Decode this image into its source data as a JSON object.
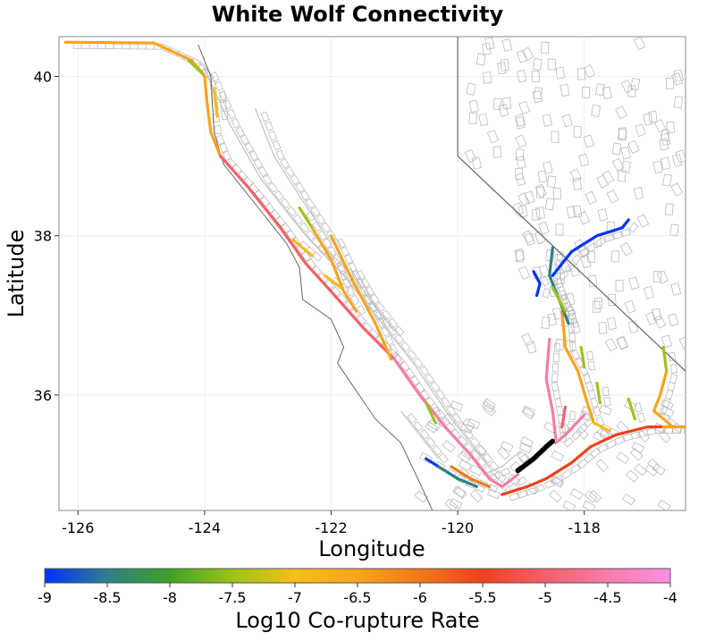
{
  "title": "White Wolf Connectivity",
  "x_axis": {
    "label": "Longitude",
    "ticks": [
      "-126",
      "-124",
      "-122",
      "-120",
      "-118"
    ]
  },
  "y_axis": {
    "label": "Latitude",
    "ticks": [
      "40",
      "38",
      "36"
    ]
  },
  "colorbar": {
    "label": "Log10 Co-rupture Rate",
    "ticks": [
      "-9",
      "-8.5",
      "-8",
      "-7.5",
      "-7",
      "-6.5",
      "-6",
      "-5.5",
      "-5",
      "-4.5",
      "-4"
    ],
    "colors": [
      "#0033ff",
      "#2d7f8a",
      "#3fa226",
      "#9dc21a",
      "#f5bd1a",
      "#f6a41d",
      "#f07a18",
      "#f0401e",
      "#f5606a",
      "#f77ca8",
      "#ff8ee8"
    ]
  },
  "map_data": {
    "lon_range": [
      -126.3,
      -116.4
    ],
    "lat_range": [
      34.55,
      40.5
    ],
    "state_border": [
      [
        -120.0,
        40.5
      ],
      [
        -120.0,
        39.0
      ],
      [
        -116.4,
        36.3
      ]
    ],
    "coastline": [
      [
        -124.1,
        40.4
      ],
      [
        -123.9,
        40.0
      ],
      [
        -123.85,
        39.3
      ],
      [
        -123.7,
        38.9
      ],
      [
        -123.1,
        38.3
      ],
      [
        -122.7,
        37.9
      ],
      [
        -122.5,
        37.6
      ],
      [
        -122.45,
        37.2
      ],
      [
        -122.0,
        36.95
      ],
      [
        -121.8,
        36.6
      ],
      [
        -121.9,
        36.4
      ],
      [
        -121.3,
        35.7
      ],
      [
        -120.9,
        35.4
      ],
      [
        -120.6,
        34.9
      ],
      [
        -120.4,
        34.55
      ]
    ],
    "selected_rupture": [
      [
        -119.05,
        35.05
      ],
      [
        -118.8,
        35.2
      ],
      [
        -118.6,
        35.35
      ],
      [
        -118.5,
        35.42
      ]
    ],
    "fault_traces": [
      {
        "log_rate": -6.3,
        "points": [
          [
            -126.2,
            40.43
          ],
          [
            -124.8,
            40.42
          ],
          [
            -124.2,
            40.2
          ],
          [
            -124.0,
            40.0
          ]
        ]
      },
      {
        "log_rate": -7.4,
        "points": [
          [
            -124.25,
            40.2
          ],
          [
            -124.05,
            40.05
          ]
        ]
      },
      {
        "log_rate": -6.5,
        "points": [
          [
            -124.0,
            40.0
          ],
          [
            -123.95,
            39.6
          ],
          [
            -123.9,
            39.3
          ],
          [
            -123.75,
            39.0
          ]
        ]
      },
      {
        "log_rate": -5.2,
        "points": [
          [
            -123.75,
            39.0
          ],
          [
            -123.3,
            38.6
          ],
          [
            -122.8,
            38.1
          ],
          [
            -122.4,
            37.65
          ],
          [
            -122.0,
            37.3
          ],
          [
            -121.5,
            36.85
          ],
          [
            -121.0,
            36.45
          ]
        ]
      },
      {
        "log_rate": -4.3,
        "points": [
          [
            -121.0,
            36.45
          ],
          [
            -120.6,
            36.0
          ],
          [
            -120.2,
            35.6
          ],
          [
            -119.8,
            35.25
          ],
          [
            -119.5,
            34.95
          ],
          [
            -119.3,
            34.85
          ],
          [
            -119.05,
            35.0
          ]
        ]
      },
      {
        "log_rate": -6.9,
        "points": [
          [
            -123.85,
            39.85
          ],
          [
            -123.8,
            39.5
          ]
        ]
      },
      {
        "log_rate": -7.3,
        "points": [
          [
            -122.5,
            38.35
          ],
          [
            -122.3,
            38.1
          ]
        ]
      },
      {
        "log_rate": -6.6,
        "points": [
          [
            -122.3,
            38.1
          ],
          [
            -122.0,
            37.7
          ],
          [
            -121.8,
            37.3
          ],
          [
            -121.6,
            37.05
          ]
        ]
      },
      {
        "log_rate": -7.0,
        "points": [
          [
            -122.6,
            37.95
          ],
          [
            -122.3,
            37.75
          ]
        ]
      },
      {
        "log_rate": -7.2,
        "points": [
          [
            -122.1,
            37.5
          ],
          [
            -121.85,
            37.35
          ]
        ]
      },
      {
        "log_rate": -6.3,
        "points": [
          [
            -122.0,
            38.0
          ],
          [
            -121.7,
            37.5
          ],
          [
            -121.3,
            36.9
          ],
          [
            -121.05,
            36.45
          ]
        ]
      },
      {
        "log_rate": -7.6,
        "points": [
          [
            -120.5,
            35.9
          ],
          [
            -120.35,
            35.65
          ]
        ]
      },
      {
        "log_rate": -8.9,
        "points": [
          [
            -120.5,
            35.2
          ],
          [
            -120.3,
            35.1
          ]
        ]
      },
      {
        "log_rate": -8.3,
        "points": [
          [
            -120.3,
            35.1
          ],
          [
            -120.0,
            34.95
          ],
          [
            -119.7,
            34.85
          ]
        ]
      },
      {
        "log_rate": -6.1,
        "points": [
          [
            -120.1,
            35.1
          ],
          [
            -119.8,
            34.95
          ],
          [
            -119.5,
            34.85
          ]
        ]
      },
      {
        "log_rate": -5.3,
        "points": [
          [
            -119.3,
            34.75
          ],
          [
            -118.9,
            34.85
          ],
          [
            -118.6,
            34.95
          ],
          [
            -118.2,
            35.15
          ],
          [
            -117.9,
            35.35
          ],
          [
            -117.5,
            35.5
          ],
          [
            -117.0,
            35.6
          ],
          [
            -116.6,
            35.6
          ]
        ]
      },
      {
        "log_rate": -6.6,
        "points": [
          [
            -116.6,
            35.6
          ],
          [
            -116.9,
            35.8
          ],
          [
            -116.8,
            36.0
          ],
          [
            -116.7,
            36.3
          ]
        ]
      },
      {
        "log_rate": -7.5,
        "points": [
          [
            -116.7,
            36.3
          ],
          [
            -116.75,
            36.6
          ]
        ]
      },
      {
        "log_rate": -6.7,
        "points": [
          [
            -116.4,
            35.6
          ],
          [
            -116.75,
            35.6
          ]
        ]
      },
      {
        "log_rate": -4.6,
        "points": [
          [
            -118.55,
            36.7
          ],
          [
            -118.6,
            36.2
          ],
          [
            -118.5,
            35.8
          ],
          [
            -118.45,
            35.45
          ]
        ]
      },
      {
        "log_rate": -4.8,
        "points": [
          [
            -118.3,
            35.85
          ],
          [
            -118.35,
            35.6
          ]
        ]
      },
      {
        "log_rate": -4.7,
        "points": [
          [
            -118.0,
            35.75
          ],
          [
            -118.3,
            35.5
          ],
          [
            -118.45,
            35.4
          ]
        ]
      },
      {
        "log_rate": -6.6,
        "points": [
          [
            -118.35,
            37.05
          ],
          [
            -118.3,
            36.6
          ],
          [
            -118.1,
            36.3
          ],
          [
            -117.95,
            35.9
          ],
          [
            -117.85,
            35.65
          ]
        ]
      },
      {
        "log_rate": -7.2,
        "points": [
          [
            -117.85,
            35.65
          ],
          [
            -117.6,
            35.55
          ]
        ]
      },
      {
        "log_rate": -7.3,
        "points": [
          [
            -117.8,
            36.15
          ],
          [
            -117.75,
            35.9
          ]
        ]
      },
      {
        "log_rate": -7.6,
        "points": [
          [
            -117.3,
            35.95
          ],
          [
            -117.2,
            35.7
          ]
        ]
      },
      {
        "log_rate": -7.6,
        "points": [
          [
            -118.05,
            36.6
          ],
          [
            -118.0,
            36.35
          ]
        ]
      },
      {
        "log_rate": -8.5,
        "points": [
          [
            -118.5,
            37.85
          ],
          [
            -118.55,
            37.5
          ],
          [
            -118.4,
            37.2
          ],
          [
            -118.25,
            36.9
          ]
        ]
      },
      {
        "log_rate": -7.5,
        "points": [
          [
            -118.5,
            37.35
          ],
          [
            -118.3,
            37.05
          ]
        ]
      },
      {
        "log_rate": -8.8,
        "points": [
          [
            -118.5,
            37.5
          ],
          [
            -118.2,
            37.8
          ],
          [
            -117.8,
            38.0
          ],
          [
            -117.4,
            38.1
          ],
          [
            -117.3,
            38.2
          ]
        ]
      },
      {
        "log_rate": -8.9,
        "points": [
          [
            -118.8,
            37.55
          ],
          [
            -118.7,
            37.4
          ],
          [
            -118.75,
            37.25
          ]
        ]
      }
    ],
    "grey_faults": [
      [
        [
          -124.0,
          40.1
        ],
        [
          -123.6,
          39.4
        ],
        [
          -123.1,
          38.7
        ],
        [
          -122.4,
          38.0
        ],
        [
          -121.8,
          37.5
        ],
        [
          -121.3,
          37.0
        ],
        [
          -120.7,
          36.4
        ],
        [
          -120.1,
          35.7
        ],
        [
          -119.5,
          35.1
        ]
      ],
      [
        [
          -123.2,
          39.6
        ],
        [
          -122.9,
          39.0
        ],
        [
          -122.5,
          38.5
        ],
        [
          -122.0,
          37.9
        ]
      ],
      [
        [
          -121.7,
          37.6
        ],
        [
          -121.4,
          37.2
        ],
        [
          -121.0,
          36.8
        ]
      ],
      [
        [
          -120.9,
          35.8
        ],
        [
          -120.6,
          35.5
        ],
        [
          -120.3,
          35.2
        ]
      ],
      [
        [
          -119.0,
          35.3
        ],
        [
          -119.3,
          35.1
        ],
        [
          -119.6,
          35.0
        ]
      ]
    ]
  }
}
